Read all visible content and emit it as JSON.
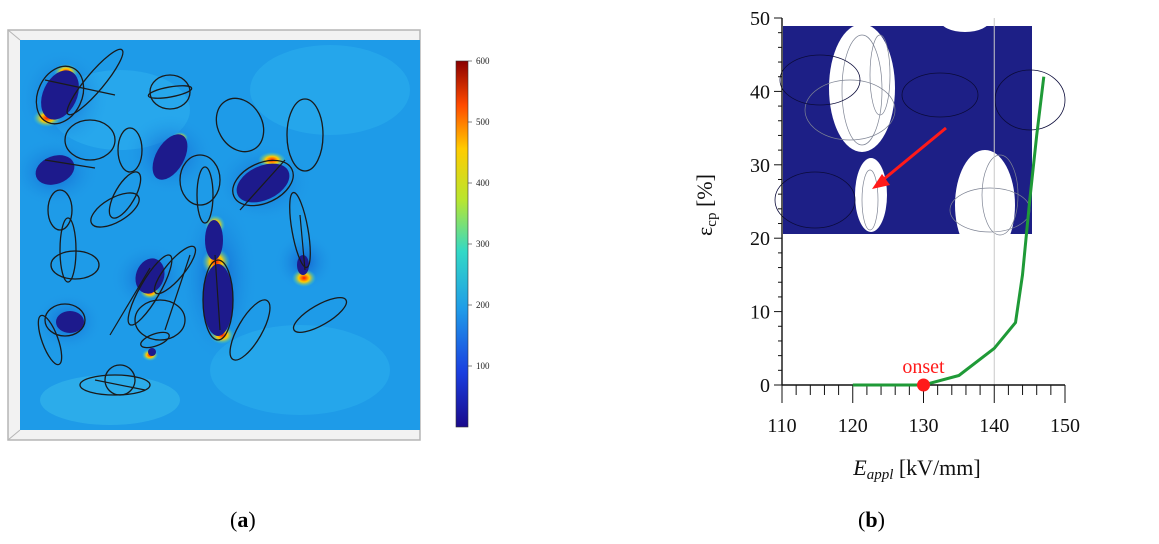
{
  "panel_labels": {
    "a": "a",
    "b": "b"
  },
  "colorbar": {
    "ticks": [
      "100",
      "200",
      "300",
      "400",
      "500",
      "600"
    ]
  },
  "colors": {
    "field_background": "#1e9be8",
    "low_region": "#1d1a8c",
    "high_spot": "#ff2200",
    "curve": "#1f9a37",
    "onset_marker": "#ff1a1a",
    "inset_background": "#1d1f86"
  },
  "chart_data": {
    "type": "line",
    "xlabel_main": "E",
    "xlabel_sub": "appl",
    "xlabel_unit": " [kV/mm]",
    "ylabel_main": "ε",
    "ylabel_sub": "cp",
    "ylabel_unit": " [%]",
    "xlim": [
      110,
      150
    ],
    "ylim": [
      0,
      50
    ],
    "xticks": [
      110,
      120,
      130,
      140,
      150
    ],
    "yticks": [
      0,
      10,
      20,
      30,
      40,
      50
    ],
    "grid": "vertical line at x=140",
    "series": [
      {
        "x": [
          120,
          130,
          135,
          140,
          143,
          144,
          145,
          146,
          147
        ],
        "y": [
          0,
          0,
          1.3,
          5,
          8.5,
          15,
          25,
          34,
          42
        ]
      }
    ],
    "annotations": [
      {
        "text": "onset",
        "x": 130,
        "y": 0
      }
    ]
  }
}
